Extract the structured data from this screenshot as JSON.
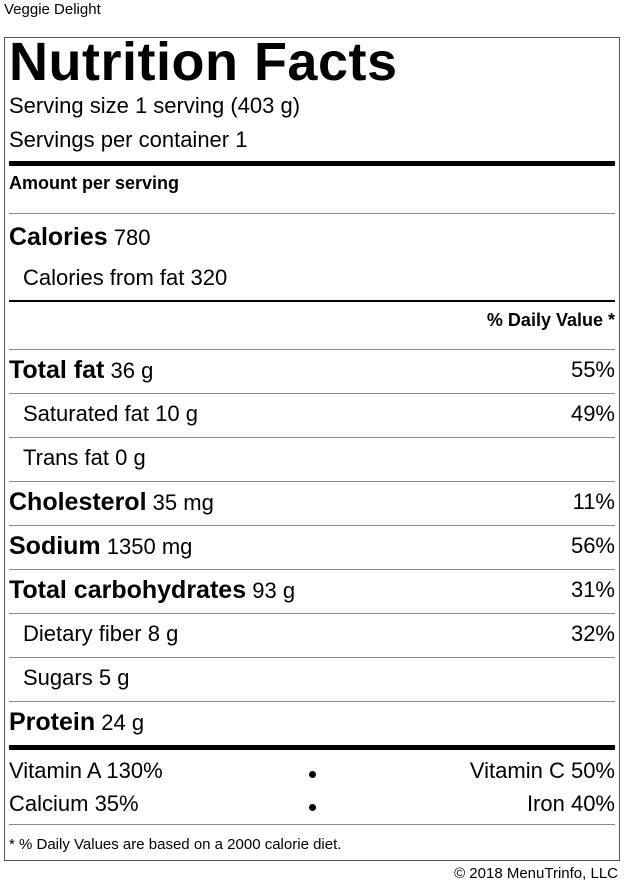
{
  "product_name": "Veggie Delight",
  "title": "Nutrition Facts",
  "serving_size": "Serving size 1 serving (403 g)",
  "servings_per_container": "Servings per container 1",
  "amount_per_serving": "Amount per serving",
  "calories": {
    "label": "Calories",
    "value": "780"
  },
  "calories_from_fat": "Calories from fat 320",
  "dv_header": "% Daily Value *",
  "nutrients": [
    {
      "label": "Total fat",
      "amount": "36 g",
      "dv": "55%",
      "bold": true
    },
    {
      "label": "Saturated fat",
      "amount": "10 g",
      "dv": "49%",
      "bold": false
    },
    {
      "label": "Trans fat",
      "amount": "0 g",
      "dv": "",
      "bold": false
    },
    {
      "label": "Cholesterol",
      "amount": "35 mg",
      "dv": "11%",
      "bold": true
    },
    {
      "label": "Sodium",
      "amount": "1350 mg",
      "dv": "56%",
      "bold": true
    },
    {
      "label": "Total carbohydrates",
      "amount": "93 g",
      "dv": "31%",
      "bold": true
    },
    {
      "label": "Dietary fiber",
      "amount": "8 g",
      "dv": "32%",
      "bold": false
    },
    {
      "label": "Sugars",
      "amount": "5 g",
      "dv": "",
      "bold": false
    },
    {
      "label": "Protein",
      "amount": "24 g",
      "dv": "",
      "bold": true
    }
  ],
  "vitamins": [
    {
      "left": "Vitamin A 130%",
      "right": "Vitamin C 50%"
    },
    {
      "left": "Calcium 35%",
      "right": "Iron 40%"
    }
  ],
  "footnote": "* % Daily Values are based on a 2000 calorie diet.",
  "copyright": "© 2018 MenuTrinfo, LLC"
}
